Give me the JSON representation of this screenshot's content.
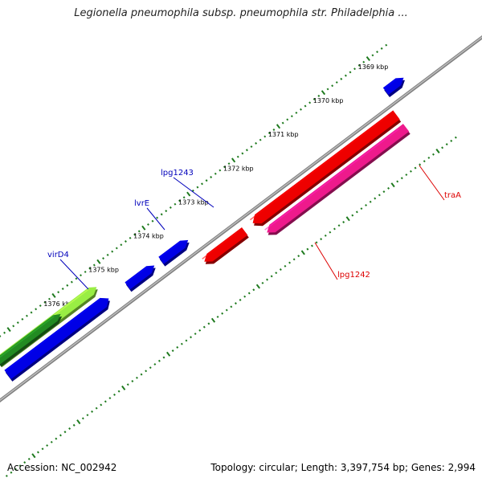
{
  "title": "Legionella pneumophila subsp. pneumophila str. Philadelphia ...",
  "footer": {
    "accession": "Accession: NC_002942",
    "summary": "Topology: circular; Length: 3,397,754 bp; Genes: 2,994"
  },
  "colors": {
    "backbone": "#7f7f7f",
    "forward_gene": "#0000e6",
    "reverse_gene": "#ee0000",
    "pink_gene": "#ee1a8c",
    "light_green_gene": "#99ee44",
    "dark_green_gene": "#228b22",
    "tick": "#1e7a1e",
    "forward_label": "#0000bb",
    "reverse_label": "#dd0000"
  },
  "ticks": [
    {
      "kbp": 1369,
      "label": "1369 kbp"
    },
    {
      "kbp": 1370,
      "label": "1370 kbp"
    },
    {
      "kbp": 1371,
      "label": "1371 kbp"
    },
    {
      "kbp": 1372,
      "label": "1372 kbp"
    },
    {
      "kbp": 1373,
      "label": "1373 kbp"
    },
    {
      "kbp": 1374,
      "label": "1374 kbp"
    },
    {
      "kbp": 1375,
      "label": "1375 kbp"
    },
    {
      "kbp": 1376,
      "label": "1376 kbp"
    }
  ],
  "genes": [
    {
      "id": "virD4",
      "label": "virD4",
      "strand": "forward",
      "start_kbp": 1375.3,
      "end_kbp": 1377.5,
      "color_key": "light_green_gene",
      "labelled": true
    },
    {
      "id": "dark-green-gene",
      "label": "",
      "strand": "forward",
      "start_kbp": 1376.1,
      "end_kbp": 1377.5,
      "color_key": "dark_green_gene",
      "labelled": false
    },
    {
      "id": "blue-forward-long",
      "label": "",
      "strand": "forward",
      "start_kbp": 1375.25,
      "end_kbp": 1377.5,
      "color_key": "forward_gene",
      "labelled": false
    },
    {
      "id": "lvrE",
      "label": "lvrE",
      "strand": "forward",
      "start_kbp": 1374.25,
      "end_kbp": 1374.85,
      "color_key": "forward_gene",
      "labelled": true
    },
    {
      "id": "lpg1243",
      "label": "lpg1243",
      "strand": "forward",
      "start_kbp": 1373.5,
      "end_kbp": 1374.1,
      "color_key": "forward_gene",
      "labelled": true
    },
    {
      "id": "blue-forward-right",
      "label": "",
      "strand": "forward",
      "start_kbp": 1368.7,
      "end_kbp": 1369.1,
      "color_key": "forward_gene",
      "labelled": false
    },
    {
      "id": "lpg1242",
      "label": "lpg1242",
      "strand": "reverse",
      "start_kbp": 1372.6,
      "end_kbp": 1373.5,
      "color_key": "reverse_gene",
      "labelled": true
    },
    {
      "id": "traA",
      "label": "traA",
      "strand": "reverse",
      "start_kbp": 1369.2,
      "end_kbp": 1372.4,
      "color_key": "reverse_gene",
      "labelled": true
    },
    {
      "id": "pink-gene",
      "label": "",
      "strand": "reverse",
      "start_kbp": 1369.2,
      "end_kbp": 1372.3,
      "color_key": "pink_gene",
      "labelled": false
    }
  ]
}
